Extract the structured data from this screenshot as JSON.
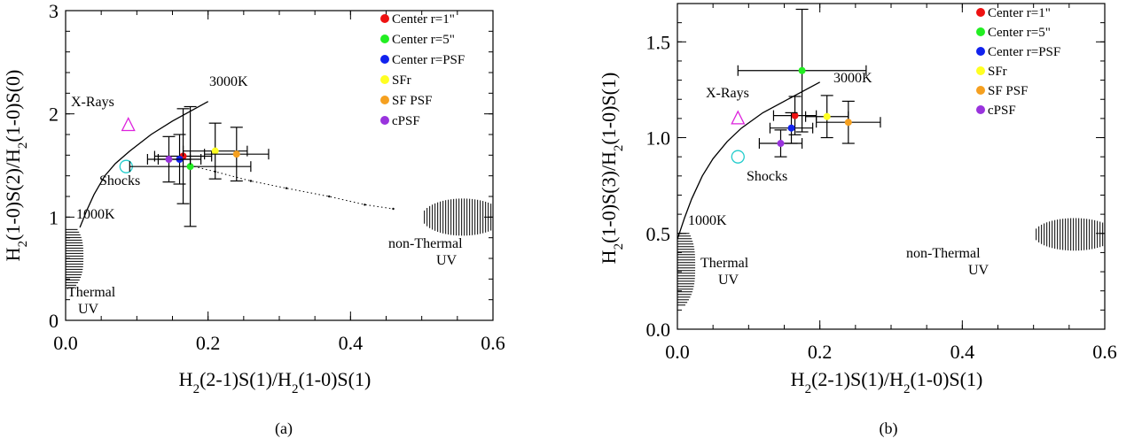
{
  "colors": {
    "center_r1": "#ee1111",
    "center_r5": "#22ee22",
    "center_psf": "#1122ee",
    "sfr": "#ffff22",
    "sf_psf": "#f5a020",
    "cpsf": "#9933dd",
    "xray_marker": "#dd22dd",
    "shock_marker": "#22cccc"
  },
  "chart_data": [
    {
      "type": "scatter",
      "caption": "(a)",
      "xlabel": {
        "main": "H",
        "sub1": "2",
        "mid": "(2-1)S(1)/H",
        "sub2": "2",
        "tail": "(1-0)S(1)"
      },
      "ylabel": {
        "main": "H",
        "sub1": "2",
        "mid": "(1-0)S(2)/H",
        "sub2": "2",
        "tail": "(1-0)S(0)"
      },
      "xlim": [
        0.0,
        0.6
      ],
      "ylim": [
        0,
        3
      ],
      "xticks": [
        "0.0",
        "0.2",
        "0.4",
        "0.6"
      ],
      "xtick_values": [
        0.0,
        0.2,
        0.4,
        0.6
      ],
      "yticks": [
        "0",
        "1",
        "2",
        "3"
      ],
      "ytick_values": [
        0,
        1,
        2,
        3
      ],
      "legend": [
        "Center r=1\"",
        "Center r=5\"",
        "Center r=PSF",
        "SFr",
        "SF PSF",
        "cPSF"
      ],
      "points": [
        {
          "series": "Center r=1\"",
          "x": 0.165,
          "y": 1.59,
          "xerr": 0.04,
          "yerr": 0.46
        },
        {
          "series": "Center r=5\"",
          "x": 0.175,
          "y": 1.49,
          "xerr": 0.085,
          "yerr": 0.58
        },
        {
          "series": "Center r=PSF",
          "x": 0.16,
          "y": 1.56,
          "xerr": 0.03,
          "yerr": 0.24
        },
        {
          "series": "SFr",
          "x": 0.21,
          "y": 1.64,
          "xerr": 0.045,
          "yerr": 0.27
        },
        {
          "series": "SF PSF",
          "x": 0.24,
          "y": 1.61,
          "xerr": 0.045,
          "yerr": 0.26
        },
        {
          "series": "cPSF",
          "x": 0.145,
          "y": 1.56,
          "xerr": 0.03,
          "yerr": 0.22
        }
      ],
      "thermal_curve": [
        [
          0.02,
          0.9
        ],
        [
          0.03,
          1.07
        ],
        [
          0.04,
          1.22
        ],
        [
          0.055,
          1.4
        ],
        [
          0.07,
          1.52
        ],
        [
          0.09,
          1.64
        ],
        [
          0.12,
          1.8
        ],
        [
          0.15,
          1.93
        ],
        [
          0.2,
          2.12
        ]
      ],
      "dotted_line": [
        [
          0.175,
          1.5
        ],
        [
          0.21,
          1.44
        ],
        [
          0.26,
          1.35
        ],
        [
          0.31,
          1.28
        ],
        [
          0.37,
          1.2
        ],
        [
          0.42,
          1.12
        ],
        [
          0.46,
          1.08
        ]
      ],
      "xray_point": {
        "x": 0.088,
        "y": 1.89
      },
      "shock_point": {
        "x": 0.085,
        "y": 1.49
      },
      "thermal_uv_region": {
        "x0": 0.0,
        "x1": 0.025,
        "y0": 0.3,
        "y1": 0.88
      },
      "nonthermal_uv_region": {
        "x0": 0.5,
        "x1": 0.6,
        "y0": 0.82,
        "y1": 1.18
      },
      "annotations": {
        "t3000": "3000K",
        "t1000": "1000K",
        "xrays": "X-Rays",
        "shocks": "Shocks",
        "thermal_1": "Thermal",
        "thermal_2": "UV",
        "nonthermal_1": "non-Thermal",
        "nonthermal_2": "UV"
      }
    },
    {
      "type": "scatter",
      "caption": "(b)",
      "xlabel": {
        "main": "H",
        "sub1": "2",
        "mid": "(2-1)S(1)/H",
        "sub2": "2",
        "tail": "(1-0)S(1)"
      },
      "ylabel": {
        "main": "H",
        "sub1": "2",
        "mid": "(1-0)S(3)/H",
        "sub2": "2",
        "tail": "(1-0)S(1)"
      },
      "xlim": [
        0.0,
        0.6
      ],
      "ylim": [
        0.0,
        1.7
      ],
      "xticks": [
        "0.0",
        "0.2",
        "0.4",
        "0.6"
      ],
      "xtick_values": [
        0.0,
        0.2,
        0.4,
        0.6
      ],
      "yticks": [
        "0.0",
        "0.5",
        "1.0",
        "1.5"
      ],
      "ytick_values": [
        0.0,
        0.5,
        1.0,
        1.5
      ],
      "legend": [
        "Center r=1\"",
        "Center r=5\"",
        "Center r=PSF",
        "SFr",
        "SF PSF",
        "cPSF"
      ],
      "points": [
        {
          "series": "Center r=1\"",
          "x": 0.165,
          "y": 1.115,
          "xerr": 0.03,
          "yerr": 0.1
        },
        {
          "series": "Center r=5\"",
          "x": 0.175,
          "y": 1.35,
          "xerr": 0.09,
          "yerr": 0.32
        },
        {
          "series": "Center r=PSF",
          "x": 0.16,
          "y": 1.05,
          "xerr": 0.03,
          "yerr": 0.08
        },
        {
          "series": "SFr",
          "x": 0.21,
          "y": 1.11,
          "xerr": 0.03,
          "yerr": 0.11
        },
        {
          "series": "SF PSF",
          "x": 0.24,
          "y": 1.08,
          "xerr": 0.045,
          "yerr": 0.11
        },
        {
          "series": "cPSF",
          "x": 0.145,
          "y": 0.97,
          "xerr": 0.03,
          "yerr": 0.07
        }
      ],
      "thermal_curve": [
        [
          0.0,
          0.47
        ],
        [
          0.01,
          0.58
        ],
        [
          0.02,
          0.68
        ],
        [
          0.035,
          0.8
        ],
        [
          0.05,
          0.89
        ],
        [
          0.07,
          0.98
        ],
        [
          0.09,
          1.05
        ],
        [
          0.12,
          1.13
        ],
        [
          0.15,
          1.19
        ],
        [
          0.2,
          1.29
        ]
      ],
      "xray_point": {
        "x": 0.085,
        "y": 1.1
      },
      "shock_point": {
        "x": 0.085,
        "y": 0.9
      },
      "thermal_uv_region": {
        "x0": 0.0,
        "x1": 0.025,
        "y0": 0.12,
        "y1": 0.5
      },
      "nonthermal_uv_region": {
        "x0": 0.5,
        "x1": 0.6,
        "y0": 0.41,
        "y1": 0.58
      },
      "annotations": {
        "t3000": "3000K",
        "t1000": "1000K",
        "xrays": "X-Rays",
        "shocks": "Shocks",
        "thermal_1": "Thermal",
        "thermal_2": "UV",
        "nonthermal_1": "non-Thermal",
        "nonthermal_2": "UV"
      }
    }
  ]
}
